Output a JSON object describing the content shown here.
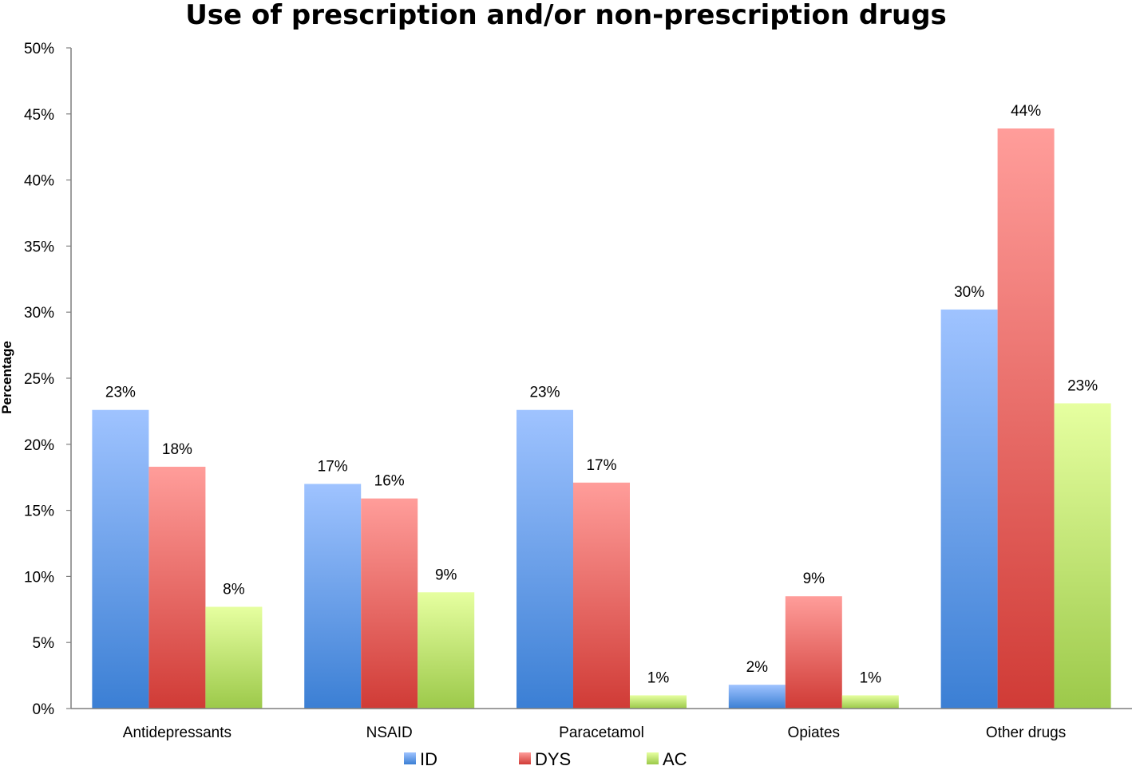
{
  "chart_data": {
    "type": "bar",
    "title": "Use of prescription and/or non-prescription drugs",
    "xlabel": "",
    "ylabel": "Percentage",
    "ylim": [
      0,
      50
    ],
    "yticks": [
      0,
      5,
      10,
      15,
      20,
      25,
      30,
      35,
      40,
      45,
      50
    ],
    "ytick_labels": [
      "0%",
      "5%",
      "10%",
      "15%",
      "20%",
      "25%",
      "30%",
      "35%",
      "40%",
      "45%",
      "50%"
    ],
    "categories": [
      "Antidepressants",
      "NSAID",
      "Paracetamol",
      "Opiates",
      "Other drugs"
    ],
    "series": [
      {
        "name": "ID",
        "color_top": "#9fc3ff",
        "color_bottom": "#3b7fd4",
        "values": [
          22.6,
          17.0,
          22.6,
          1.8,
          30.2
        ],
        "labels": [
          "23%",
          "17%",
          "23%",
          "2%",
          "30%"
        ]
      },
      {
        "name": "DYS",
        "color_top": "#ff9d9a",
        "color_bottom": "#d03b36",
        "values": [
          18.3,
          15.9,
          17.1,
          8.5,
          43.9
        ],
        "labels": [
          "18%",
          "16%",
          "17%",
          "9%",
          "44%"
        ]
      },
      {
        "name": "AC",
        "color_top": "#e6ffa0",
        "color_bottom": "#9cc94a",
        "values": [
          7.7,
          8.8,
          1.0,
          1.0,
          23.1
        ],
        "labels": [
          "8%",
          "9%",
          "1%",
          "1%",
          "23%"
        ]
      }
    ],
    "legend": {
      "placement": "bottom",
      "entries": [
        "ID",
        "DYS",
        "AC"
      ]
    },
    "grid": false
  }
}
